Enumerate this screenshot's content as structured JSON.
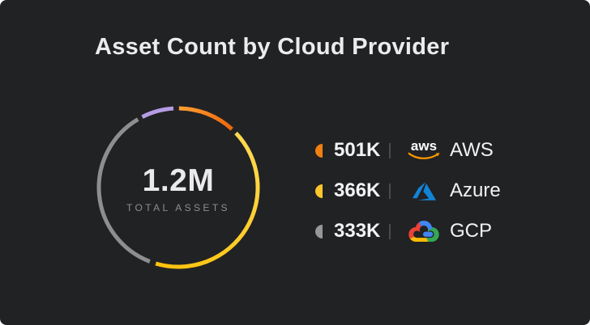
{
  "card": {
    "bg": "#212224"
  },
  "title": "Asset Count by Cloud Provider",
  "chart_data": {
    "type": "donut",
    "title": "Asset Count by Cloud Provider",
    "center_value": "1.2M",
    "center_label": "TOTAL ASSETS",
    "total_assets": 1200000,
    "radius": 98,
    "stroke_width": 5,
    "legend_position": "right",
    "segments": [
      {
        "provider": "AWS",
        "value_label": "501K",
        "value": 501000,
        "color": "#F28011"
      },
      {
        "provider": "Azure",
        "value_label": "366K",
        "value": 366000,
        "color": "#FFC629"
      },
      {
        "provider": "GCP",
        "value_label": "333K",
        "value": 333000,
        "color": "#97979A"
      }
    ],
    "ring_arcs": [
      {
        "series": "orange",
        "start_deg": 0.5,
        "end_deg": 42.5,
        "color_start": "#FFA033",
        "color_end": "#EE640C"
      },
      {
        "series": "yellow",
        "start_deg": 46.5,
        "end_deg": 196.5,
        "color_start": "#FFD94F",
        "color_end": "#FFC30D"
      },
      {
        "series": "gray",
        "start_deg": 201,
        "end_deg": 329.5,
        "color_start": "#8E8E90",
        "color_end": "#8E8E90"
      },
      {
        "series": "purple",
        "start_deg": 333,
        "end_deg": 356.5,
        "color_start": "#B59CE4",
        "color_end": "#B59CE4"
      }
    ]
  },
  "logos": {
    "aws_wordmark": "aws",
    "aws_orange": "#FF9900",
    "azure_blue": "#1284D7",
    "gcp_red": "#EA4335",
    "gcp_yellow": "#FBBC05",
    "gcp_green": "#34A853",
    "gcp_blue": "#4285F4"
  }
}
